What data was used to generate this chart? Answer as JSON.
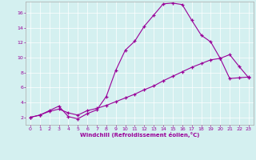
{
  "xlabel": "Windchill (Refroidissement éolien,°C)",
  "bg_color": "#d4f0f0",
  "line_color": "#990099",
  "line1_x": [
    0,
    1,
    2,
    3,
    4,
    5,
    6,
    7,
    8,
    9,
    10,
    11,
    12,
    13,
    14,
    15,
    16,
    17,
    18,
    19,
    20,
    21,
    22,
    23
  ],
  "line1_y": [
    2.0,
    2.3,
    2.9,
    3.5,
    2.1,
    1.8,
    2.5,
    3.0,
    4.8,
    8.3,
    11.0,
    12.2,
    14.2,
    15.7,
    17.2,
    17.3,
    17.1,
    15.0,
    13.0,
    12.1,
    9.9,
    10.4,
    8.8,
    7.3
  ],
  "line2_x": [
    0,
    1,
    2,
    3,
    4,
    5,
    6,
    7,
    8,
    9,
    10,
    11,
    12,
    13,
    14,
    15,
    16,
    17,
    18,
    19,
    20,
    21,
    22,
    23
  ],
  "line2_y": [
    2.0,
    2.3,
    2.8,
    3.1,
    2.6,
    2.3,
    2.9,
    3.2,
    3.6,
    4.1,
    4.6,
    5.1,
    5.7,
    6.2,
    6.9,
    7.5,
    8.1,
    8.7,
    9.2,
    9.7,
    9.9,
    7.2,
    7.3,
    7.4
  ],
  "xlim": [
    -0.5,
    23.5
  ],
  "ylim": [
    1.0,
    17.5
  ],
  "yticks": [
    2,
    4,
    6,
    8,
    10,
    12,
    14,
    16
  ],
  "xticks": [
    0,
    1,
    2,
    3,
    4,
    5,
    6,
    7,
    8,
    9,
    10,
    11,
    12,
    13,
    14,
    15,
    16,
    17,
    18,
    19,
    20,
    21,
    22,
    23
  ]
}
